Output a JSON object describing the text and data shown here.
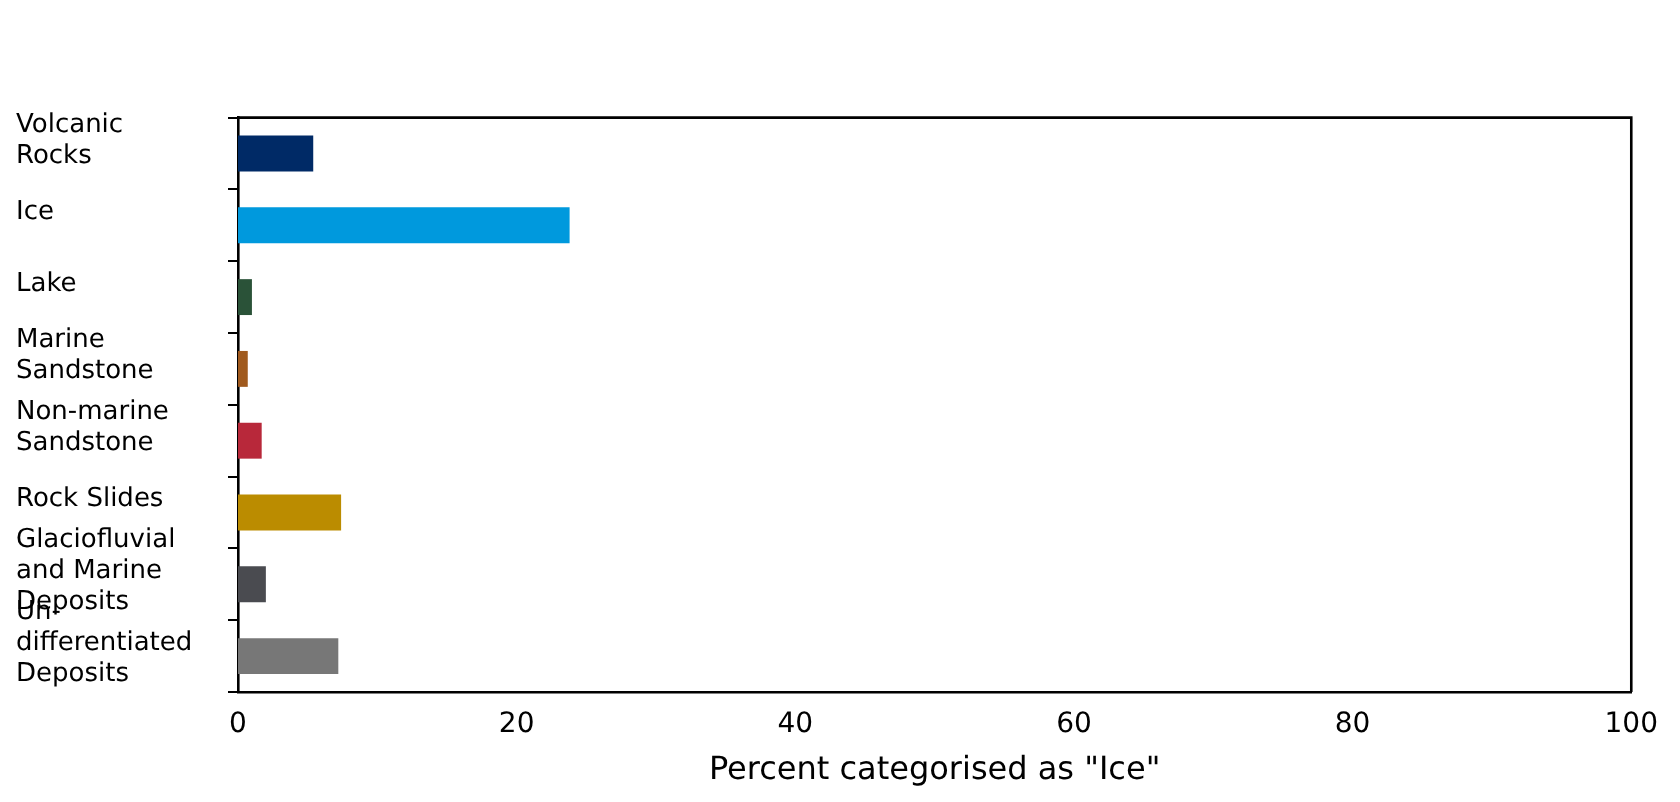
{
  "chart_data": {
    "type": "bar",
    "orientation": "horizontal",
    "categories": [
      "Volcanic\nRocks",
      "Ice",
      "Lake",
      "Marine\nSandstone",
      "Non-marine\nSandstone",
      "Rock Slides",
      "Glaciofluvial\nand Marine\nDeposits",
      "Un-\ndifferentiated\nDeposits"
    ],
    "values": [
      5.4,
      23.8,
      1.0,
      0.7,
      1.7,
      7.4,
      2.0,
      7.2
    ],
    "colors": [
      "#002a66",
      "#0099dd",
      "#2a5238",
      "#a05a1e",
      "#b8283a",
      "#bb8c00",
      "#4a4b50",
      "#777777"
    ],
    "xlim": [
      0,
      100
    ],
    "xticks": [
      0,
      20,
      40,
      60,
      80,
      100
    ],
    "xlabel": "Percent categorised as \"Ice\"",
    "grid": false,
    "legend": false
  }
}
